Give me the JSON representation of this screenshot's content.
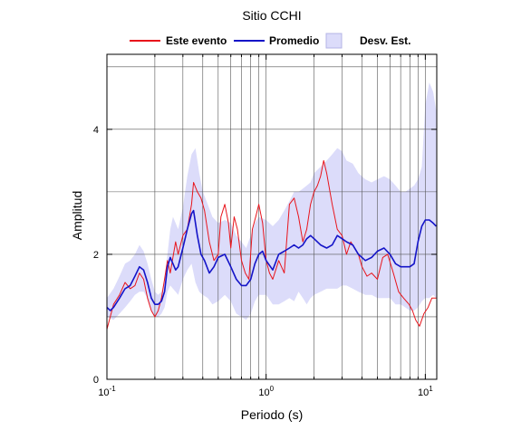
{
  "chart_data": {
    "type": "line",
    "title": "Sitio CCHI",
    "xlabel": "Periodo (s)",
    "ylabel": "Amplitud",
    "x_scale": "log",
    "xlim": [
      0.1,
      11.8
    ],
    "ylim": [
      0,
      5.2
    ],
    "x_ticks": [
      {
        "value": 0.1,
        "base": "10",
        "exp": "-1"
      },
      {
        "value": 1,
        "base": "10",
        "exp": "0"
      },
      {
        "value": 10,
        "base": "10",
        "exp": "1"
      }
    ],
    "y_ticks": [
      {
        "value": 0,
        "label": "0"
      },
      {
        "value": 2,
        "label": "2"
      },
      {
        "value": 4,
        "label": "4"
      }
    ],
    "grid": true,
    "legend": {
      "placement": "top-center",
      "entries": [
        {
          "key": "event",
          "label": "Este evento"
        },
        {
          "key": "mean",
          "label": "Promedio"
        },
        {
          "key": "band",
          "label": "Desv. Est."
        }
      ]
    },
    "colors": {
      "event": "#e8141b",
      "mean": "#1414c8",
      "band": "#dcdcfa",
      "band_stroke": "#b4b4e6",
      "grid": "#555555"
    },
    "series": [
      {
        "name": "Este evento",
        "x": [
          0.1,
          0.11,
          0.12,
          0.13,
          0.14,
          0.15,
          0.16,
          0.17,
          0.18,
          0.19,
          0.2,
          0.21,
          0.22,
          0.23,
          0.24,
          0.25,
          0.27,
          0.28,
          0.3,
          0.32,
          0.34,
          0.35,
          0.37,
          0.39,
          0.41,
          0.44,
          0.47,
          0.5,
          0.52,
          0.55,
          0.58,
          0.6,
          0.63,
          0.66,
          0.7,
          0.74,
          0.78,
          0.82,
          0.86,
          0.9,
          0.95,
          1.0,
          1.05,
          1.1,
          1.2,
          1.3,
          1.4,
          1.5,
          1.6,
          1.7,
          1.8,
          1.9,
          2.0,
          2.1,
          2.2,
          2.3,
          2.4,
          2.6,
          2.8,
          3.0,
          3.2,
          3.4,
          3.6,
          3.8,
          4.0,
          4.3,
          4.6,
          5.0,
          5.4,
          5.8,
          6.3,
          6.8,
          7.3,
          7.9,
          8.3,
          8.7,
          9.2,
          9.8,
          10.4,
          11.0,
          11.7
        ],
        "y": [
          0.8,
          1.2,
          1.35,
          1.55,
          1.45,
          1.5,
          1.7,
          1.6,
          1.3,
          1.1,
          1.0,
          1.1,
          1.3,
          1.6,
          1.9,
          1.7,
          2.2,
          2.0,
          2.3,
          2.4,
          2.8,
          3.15,
          3.0,
          2.9,
          2.7,
          2.2,
          1.9,
          2.0,
          2.6,
          2.8,
          2.5,
          2.1,
          2.6,
          2.4,
          1.9,
          1.7,
          1.6,
          2.4,
          2.6,
          2.8,
          2.5,
          1.9,
          1.7,
          1.6,
          1.9,
          1.7,
          2.8,
          2.9,
          2.6,
          2.2,
          2.4,
          2.8,
          3.0,
          3.1,
          3.25,
          3.5,
          3.3,
          2.8,
          2.4,
          2.3,
          2.0,
          2.2,
          2.1,
          2.0,
          1.8,
          1.65,
          1.7,
          1.6,
          1.95,
          2.0,
          1.7,
          1.4,
          1.3,
          1.2,
          1.1,
          0.95,
          0.85,
          1.05,
          1.15,
          1.3,
          1.3
        ]
      },
      {
        "name": "Promedio",
        "x": [
          0.1,
          0.105,
          0.11,
          0.12,
          0.13,
          0.14,
          0.15,
          0.16,
          0.17,
          0.18,
          0.19,
          0.2,
          0.21,
          0.22,
          0.23,
          0.24,
          0.25,
          0.26,
          0.27,
          0.28,
          0.3,
          0.32,
          0.34,
          0.35,
          0.37,
          0.39,
          0.41,
          0.44,
          0.47,
          0.5,
          0.55,
          0.6,
          0.65,
          0.7,
          0.75,
          0.8,
          0.85,
          0.9,
          0.95,
          1.0,
          1.1,
          1.2,
          1.3,
          1.4,
          1.5,
          1.6,
          1.7,
          1.8,
          1.9,
          2.0,
          2.2,
          2.4,
          2.6,
          2.8,
          3.0,
          3.2,
          3.5,
          3.8,
          4.2,
          4.6,
          5.0,
          5.5,
          6.0,
          6.5,
          7.0,
          7.5,
          8.0,
          8.5,
          9.0,
          9.5,
          10.0,
          10.6,
          11.2,
          11.7
        ],
        "y": [
          1.15,
          1.1,
          1.15,
          1.3,
          1.45,
          1.5,
          1.65,
          1.8,
          1.75,
          1.55,
          1.3,
          1.2,
          1.2,
          1.25,
          1.4,
          1.8,
          1.95,
          1.85,
          1.75,
          1.8,
          2.1,
          2.4,
          2.65,
          2.7,
          2.3,
          2.0,
          1.9,
          1.7,
          1.8,
          1.95,
          2.0,
          1.8,
          1.6,
          1.5,
          1.5,
          1.6,
          1.85,
          2.0,
          2.05,
          1.9,
          1.75,
          2.0,
          2.05,
          2.1,
          2.15,
          2.1,
          2.15,
          2.25,
          2.3,
          2.25,
          2.15,
          2.1,
          2.15,
          2.3,
          2.25,
          2.2,
          2.15,
          2.0,
          1.9,
          1.95,
          2.05,
          2.1,
          2.0,
          1.85,
          1.8,
          1.8,
          1.8,
          1.85,
          2.2,
          2.45,
          2.55,
          2.55,
          2.5,
          2.45
        ]
      }
    ],
    "std_band": {
      "name": "Desv. Est.",
      "x": [
        0.1,
        0.11,
        0.12,
        0.13,
        0.14,
        0.15,
        0.16,
        0.17,
        0.18,
        0.19,
        0.2,
        0.21,
        0.22,
        0.23,
        0.24,
        0.25,
        0.26,
        0.27,
        0.28,
        0.3,
        0.32,
        0.34,
        0.36,
        0.38,
        0.4,
        0.43,
        0.46,
        0.5,
        0.55,
        0.6,
        0.65,
        0.7,
        0.75,
        0.8,
        0.85,
        0.9,
        1.0,
        1.1,
        1.2,
        1.3,
        1.4,
        1.5,
        1.6,
        1.7,
        1.8,
        1.9,
        2.0,
        2.2,
        2.4,
        2.6,
        2.8,
        3.0,
        3.2,
        3.5,
        3.8,
        4.2,
        4.6,
        5.0,
        5.5,
        6.0,
        6.5,
        7.0,
        7.5,
        8.0,
        8.5,
        9.0,
        9.5,
        10.0,
        10.6,
        11.2,
        11.7
      ],
      "upper": [
        1.3,
        1.45,
        1.65,
        1.85,
        1.9,
        2.0,
        2.15,
        2.05,
        1.85,
        1.6,
        1.4,
        1.35,
        1.4,
        1.6,
        2.0,
        2.4,
        2.6,
        2.5,
        2.4,
        2.75,
        3.25,
        3.6,
        3.7,
        3.3,
        3.0,
        2.8,
        2.6,
        2.5,
        2.55,
        2.5,
        2.3,
        2.2,
        2.1,
        2.3,
        2.5,
        2.6,
        2.55,
        2.45,
        2.55,
        2.7,
        2.85,
        3.0,
        3.0,
        3.05,
        3.1,
        3.15,
        3.3,
        3.4,
        3.5,
        3.6,
        3.7,
        3.65,
        3.5,
        3.45,
        3.3,
        3.2,
        3.15,
        3.2,
        3.25,
        3.2,
        3.1,
        3.0,
        3.0,
        3.05,
        3.1,
        3.2,
        3.4,
        4.4,
        4.75,
        4.6,
        4.3
      ],
      "lower": [
        1.0,
        0.95,
        1.05,
        1.15,
        1.25,
        1.35,
        1.4,
        1.4,
        1.3,
        1.1,
        1.0,
        1.0,
        1.05,
        1.15,
        1.4,
        1.5,
        1.45,
        1.4,
        1.35,
        1.6,
        1.75,
        1.85,
        1.55,
        1.4,
        1.35,
        1.3,
        1.2,
        1.25,
        1.35,
        1.25,
        1.05,
        1.0,
        0.95,
        1.05,
        1.25,
        1.35,
        1.35,
        1.2,
        1.2,
        1.25,
        1.3,
        1.25,
        1.4,
        1.3,
        1.2,
        1.3,
        1.35,
        1.4,
        1.45,
        1.45,
        1.45,
        1.5,
        1.5,
        1.45,
        1.4,
        1.35,
        1.35,
        1.3,
        1.3,
        1.3,
        1.2,
        1.2,
        1.15,
        1.1,
        1.1,
        1.15,
        1.25,
        1.3,
        1.3,
        1.35,
        1.3
      ]
    }
  }
}
